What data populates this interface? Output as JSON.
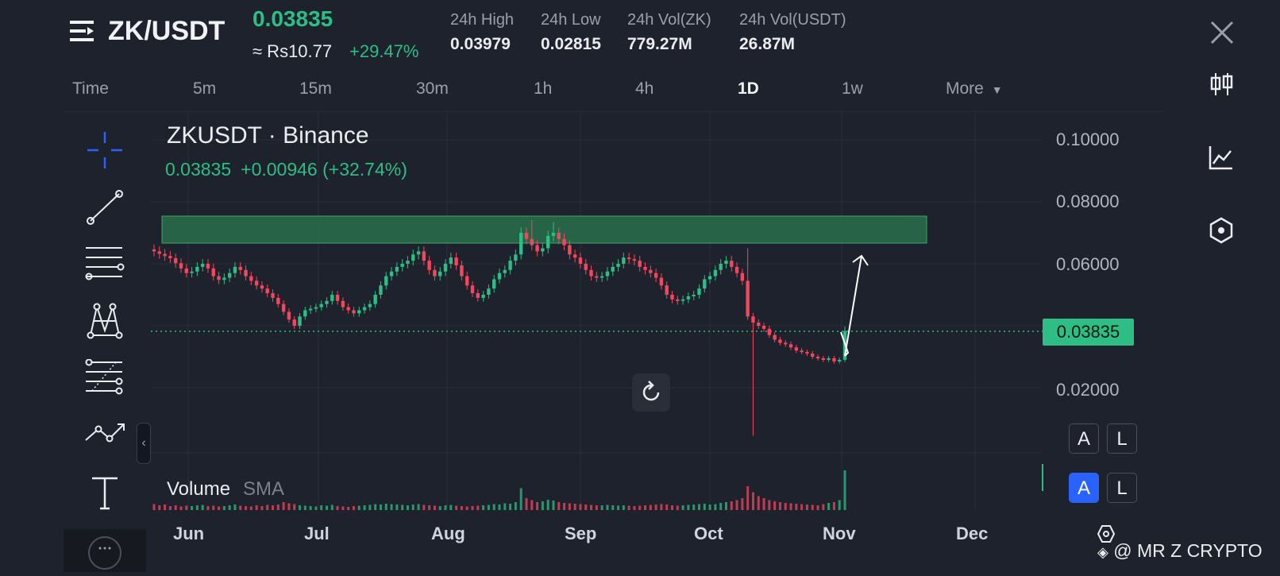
{
  "header": {
    "pair": "ZK/USDT",
    "last_price": "0.03835",
    "fiat_price": "≈ Rs10.77",
    "change_pct": "+29.47%",
    "stats": [
      {
        "label": "24h High",
        "value": "0.03979"
      },
      {
        "label": "24h Low",
        "value": "0.02815"
      },
      {
        "label": "24h Vol(ZK)",
        "value": "779.27M"
      },
      {
        "label": "24h Vol(USDT)",
        "value": "26.87M"
      }
    ]
  },
  "timeframes": [
    "Time",
    "5m",
    "15m",
    "30m",
    "1h",
    "4h",
    "1D",
    "1w",
    "More"
  ],
  "active_timeframe": "1D",
  "chart": {
    "symbol_title": "ZKUSDT · Binance",
    "ohlc_price": "0.03835",
    "ohlc_change": "+0.00946 (+32.74%)",
    "price_axis": [
      "0.10000",
      "0.08000",
      "0.06000",
      "0.02000"
    ],
    "current_price_tag": "0.03835",
    "time_axis": [
      "Jun",
      "Jul",
      "Aug",
      "Sep",
      "Oct",
      "Nov",
      "Dec"
    ],
    "volume_label": "Volume",
    "volume_sma_label": "SMA",
    "scale_buttons_top": [
      "A",
      "L"
    ],
    "scale_buttons_bottom": [
      "A",
      "L"
    ],
    "watermark": "@ MR Z CRYPTO",
    "colors": {
      "up": "#2ebd85",
      "down": "#f6465d",
      "zone": "#2b7a4f",
      "background": "#1e222d"
    }
  },
  "chart_data": {
    "type": "candlestick",
    "symbol": "ZKUSDT",
    "period": "1D",
    "y_ticks": [
      0.02,
      0.06,
      0.08,
      0.1
    ],
    "x_labels": [
      "Jun",
      "Jul",
      "Aug",
      "Sep",
      "Oct",
      "Nov",
      "Dec"
    ],
    "last_close": 0.03835,
    "resistance_zone": [
      0.0665,
      0.0748
    ],
    "projection_arrow_target": 0.063,
    "close_series_approx": [
      0.064,
      0.0632,
      0.0625,
      0.0618,
      0.0602,
      0.0585,
      0.057,
      0.0575,
      0.059,
      0.06,
      0.0585,
      0.056,
      0.0548,
      0.0555,
      0.057,
      0.059,
      0.058,
      0.056,
      0.0545,
      0.053,
      0.052,
      0.0505,
      0.049,
      0.047,
      0.0445,
      0.042,
      0.04,
      0.043,
      0.045,
      0.0455,
      0.046,
      0.047,
      0.048,
      0.05,
      0.048,
      0.046,
      0.045,
      0.044,
      0.045,
      0.046,
      0.047,
      0.05,
      0.053,
      0.056,
      0.0575,
      0.059,
      0.06,
      0.061,
      0.063,
      0.064,
      0.061,
      0.058,
      0.056,
      0.0575,
      0.06,
      0.062,
      0.0595,
      0.056,
      0.053,
      0.0505,
      0.049,
      0.05,
      0.052,
      0.055,
      0.057,
      0.058,
      0.061,
      0.063,
      0.07,
      0.068,
      0.066,
      0.064,
      0.065,
      0.069,
      0.07,
      0.068,
      0.066,
      0.063,
      0.062,
      0.06,
      0.058,
      0.056,
      0.0555,
      0.056,
      0.0575,
      0.059,
      0.06,
      0.062,
      0.0615,
      0.061,
      0.059,
      0.058,
      0.057,
      0.0555,
      0.053,
      0.05,
      0.0485,
      0.048,
      0.0485,
      0.0495,
      0.05,
      0.052,
      0.055,
      0.056,
      0.058,
      0.06,
      0.061,
      0.059,
      0.057,
      0.0545,
      0.043,
      0.041,
      0.04,
      0.039,
      0.037,
      0.0355,
      0.0345,
      0.034,
      0.033,
      0.032,
      0.0315,
      0.031,
      0.03,
      0.0295,
      0.029,
      0.0295,
      0.0285,
      0.029,
      0.0383
    ],
    "volume_series_approx": [
      0.15,
      0.12,
      0.14,
      0.1,
      0.12,
      0.09,
      0.11,
      0.1,
      0.12,
      0.13,
      0.1,
      0.11,
      0.09,
      0.1,
      0.12,
      0.14,
      0.11,
      0.1,
      0.09,
      0.12,
      0.1,
      0.13,
      0.12,
      0.14,
      0.2,
      0.17,
      0.15,
      0.12,
      0.11,
      0.1,
      0.09,
      0.12,
      0.11,
      0.13,
      0.1,
      0.09,
      0.08,
      0.1,
      0.11,
      0.12,
      0.13,
      0.15,
      0.14,
      0.16,
      0.15,
      0.14,
      0.13,
      0.12,
      0.14,
      0.15,
      0.13,
      0.12,
      0.11,
      0.1,
      0.12,
      0.13,
      0.11,
      0.1,
      0.09,
      0.1,
      0.11,
      0.12,
      0.13,
      0.15,
      0.14,
      0.17,
      0.16,
      0.2,
      0.55,
      0.3,
      0.25,
      0.2,
      0.22,
      0.26,
      0.24,
      0.2,
      0.18,
      0.17,
      0.16,
      0.15,
      0.14,
      0.13,
      0.12,
      0.12,
      0.13,
      0.12,
      0.11,
      0.12,
      0.11,
      0.1,
      0.11,
      0.12,
      0.13,
      0.14,
      0.15,
      0.14,
      0.12,
      0.11,
      0.12,
      0.13,
      0.14,
      0.15,
      0.16,
      0.14,
      0.15,
      0.18,
      0.2,
      0.22,
      0.25,
      0.3,
      0.6,
      0.45,
      0.35,
      0.3,
      0.25,
      0.22,
      0.2,
      0.18,
      0.17,
      0.16,
      0.15,
      0.14,
      0.13,
      0.12,
      0.15,
      0.18,
      0.2,
      0.25,
      1.0
    ]
  }
}
